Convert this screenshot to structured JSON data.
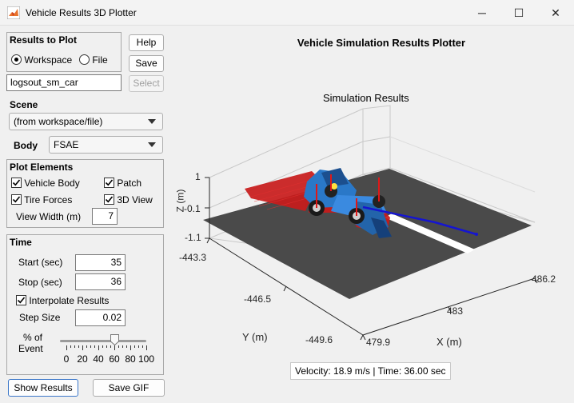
{
  "window": {
    "title": "Vehicle Results 3D Plotter",
    "minimize": "─",
    "maximize": "☐",
    "close": "✕"
  },
  "results_panel": {
    "title": "Results to Plot",
    "option_workspace": "Workspace",
    "option_file": "File",
    "selected": "Workspace",
    "variable_value": "logsout_sm_car"
  },
  "buttons": {
    "help": "Help",
    "save": "Save",
    "select": "Select",
    "show_results": "Show Results",
    "save_gif": "Save GIF"
  },
  "scene": {
    "label": "Scene",
    "value": "(from workspace/file)"
  },
  "body": {
    "label": "Body",
    "value": "FSAE"
  },
  "plot_elements": {
    "title": "Plot Elements",
    "vehicle_body": {
      "label": "Vehicle Body",
      "checked": true
    },
    "patch": {
      "label": "Patch",
      "checked": true
    },
    "tire_forces": {
      "label": "Tire Forces",
      "checked": true
    },
    "view_3d": {
      "label": "3D View",
      "checked": true
    },
    "view_width_label": "View Width (m)",
    "view_width_value": "7"
  },
  "time_panel": {
    "title": "Time",
    "start_label": "Start (sec)",
    "start_value": "35",
    "stop_label": "Stop (sec)",
    "stop_value": "36",
    "interpolate_label": "Interpolate Results",
    "interpolate_checked": true,
    "step_label": "Step Size",
    "step_value": "0.02",
    "event_label_1": "% of",
    "event_label_2": "Event",
    "slider_percent": 60,
    "slider_ticks": [
      "0",
      "20",
      "40",
      "60",
      "80",
      "100"
    ]
  },
  "plot": {
    "header": "Vehicle Simulation Results Plotter",
    "axes_title": "Simulation Results",
    "z_label": "Z (m)",
    "y_label": "Y (m)",
    "x_label": "X (m)",
    "z_ticks": [
      "1",
      "-0.1",
      "-1.1"
    ],
    "y_ticks": [
      "-443.3",
      "-446.5",
      "-449.6"
    ],
    "x_ticks": [
      "479.9",
      "483",
      "486.2"
    ],
    "status": "Velocity: 18.9 m/s |  Time: 36.00 sec",
    "colors": {
      "ground": "#4a4a4a",
      "path_red": "#d91a1a",
      "car_blue": "#2a78c8",
      "trajectory": "#1515d0"
    }
  }
}
